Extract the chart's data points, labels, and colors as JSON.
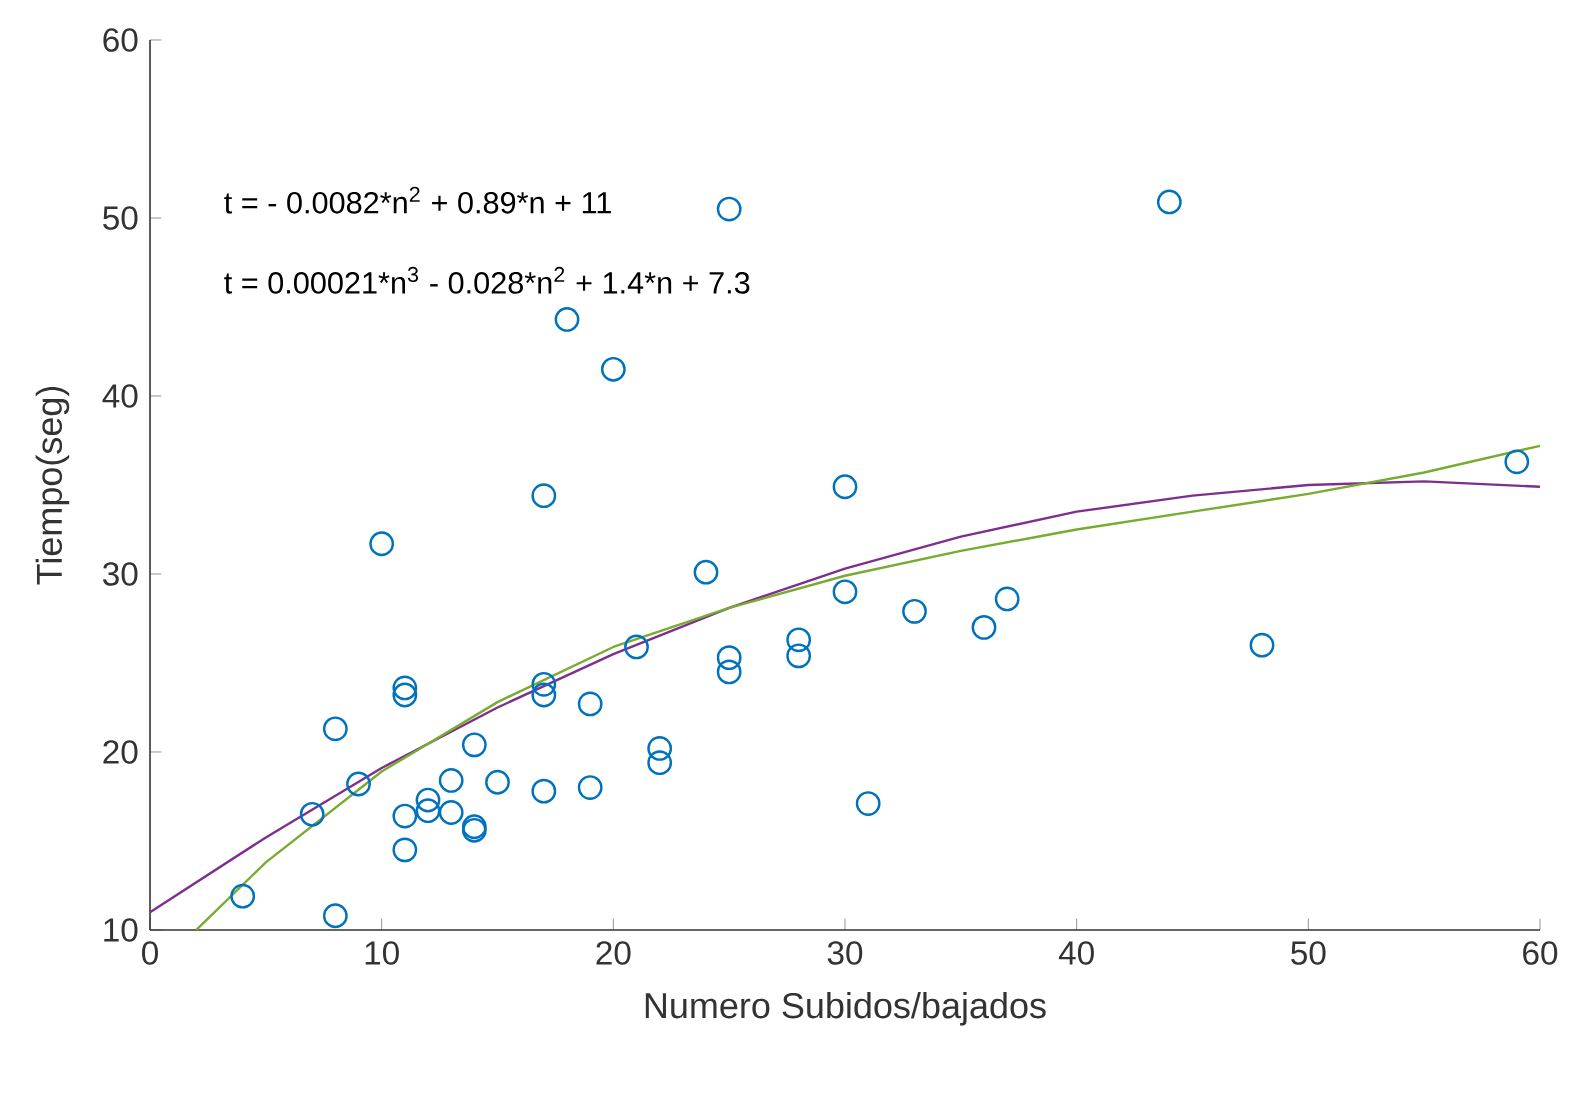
{
  "chart_data": {
    "type": "scatter",
    "xlabel": "Numero Subidos/bajados",
    "ylabel": "Tiempo(seg)",
    "annotations": [
      "t = - 0.0082*n$^{2}$ + 0.89*n + 11",
      "t = 0.00021*n$^{3}$ - 0.028*n$^{2}$ + 1.4*n + 7.3"
    ],
    "xlim": [
      0,
      60
    ],
    "ylim": [
      10,
      60
    ],
    "xticks": [
      0,
      10,
      20,
      30,
      40,
      50,
      60
    ],
    "yticks": [
      10,
      20,
      30,
      40,
      50,
      60
    ],
    "grid": false,
    "series": [
      {
        "marker": "circle",
        "color": "#0072bd",
        "x": [
          4,
          7,
          8,
          8,
          9,
          10,
          11,
          11,
          11,
          11,
          12,
          12,
          13,
          13,
          14,
          14,
          14,
          15,
          17,
          17,
          17,
          17,
          18,
          19,
          19,
          20,
          21,
          22,
          22,
          24,
          25,
          25,
          25,
          28,
          28,
          30,
          30,
          31,
          33,
          36,
          37,
          44,
          48,
          59
        ],
        "values": [
          11.9,
          16.5,
          21.3,
          10.8,
          18.2,
          31.7,
          23.2,
          23.6,
          16.4,
          14.5,
          17.3,
          16.7,
          18.4,
          16.6,
          20.4,
          15.8,
          15.6,
          18.3,
          34.4,
          23.8,
          23.2,
          17.8,
          44.3,
          22.7,
          18,
          41.5,
          25.9,
          20.2,
          19.4,
          30.1,
          50.5,
          25.3,
          24.5,
          26.3,
          25.4,
          34.9,
          29,
          17.1,
          27.9,
          27,
          28.6,
          50.9,
          26,
          36.3
        ]
      },
      {
        "type": "line",
        "marker": "none",
        "line_style": "solid",
        "color": "#7e2f8e",
        "x": [
          0,
          5,
          10,
          15,
          20,
          25,
          30,
          35,
          40,
          45,
          50,
          55,
          60
        ],
        "values": [
          11,
          15.2,
          19.1,
          22.5,
          25.5,
          28.1,
          30.3,
          32.1,
          33.5,
          34.4,
          35,
          35.2,
          34.9
        ]
      },
      {
        "type": "line",
        "marker": "none",
        "line_style": "solid",
        "color": "#77ac30",
        "x": [
          2,
          5,
          10,
          15,
          20,
          25,
          30,
          35,
          40,
          45,
          50,
          55,
          60
        ],
        "values": [
          10,
          13.8,
          18.9,
          22.8,
          25.9,
          28.1,
          29.9,
          31.3,
          32.5,
          33.5,
          34.5,
          35.7,
          37.2
        ]
      }
    ]
  }
}
